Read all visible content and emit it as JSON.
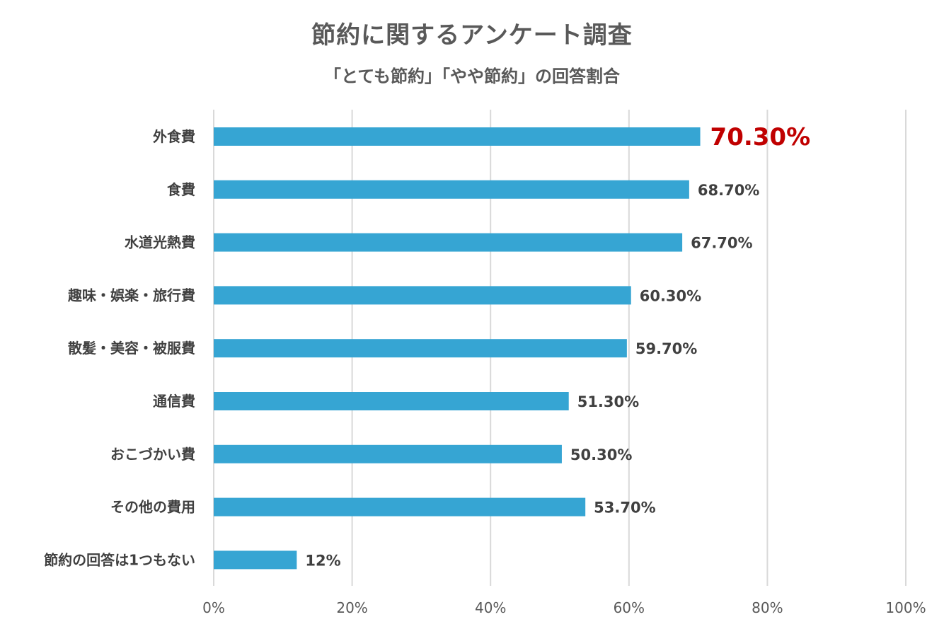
{
  "chart_data": {
    "type": "bar",
    "orientation": "horizontal",
    "title": "節約に関するアンケート調査",
    "subtitle": "「とても節約」「やや節約」の回答割合",
    "categories": [
      "外食費",
      "食費",
      "水道光熱費",
      "趣味・娯楽・旅行費",
      "散髪・美容・被服費",
      "通信費",
      "おこづかい費",
      "その他の費用",
      "節約の回答は1つもない"
    ],
    "values": [
      70.3,
      68.7,
      67.7,
      60.3,
      59.7,
      51.3,
      50.3,
      53.7,
      12
    ],
    "value_labels": [
      "70.30%",
      "68.70%",
      "67.70%",
      "60.30%",
      "59.70%",
      "51.30%",
      "50.30%",
      "53.70%",
      "12%"
    ],
    "highlight_index": 0,
    "xlim": [
      0,
      100
    ],
    "x_ticks": [
      "0%",
      "20%",
      "40%",
      "60%",
      "80%",
      "100%"
    ],
    "grid": true,
    "legend": "none",
    "colors": {
      "bar": "#36a5d3",
      "highlight_label": "#c00000",
      "label": "#404040",
      "grid": "#d9d9d9"
    }
  }
}
